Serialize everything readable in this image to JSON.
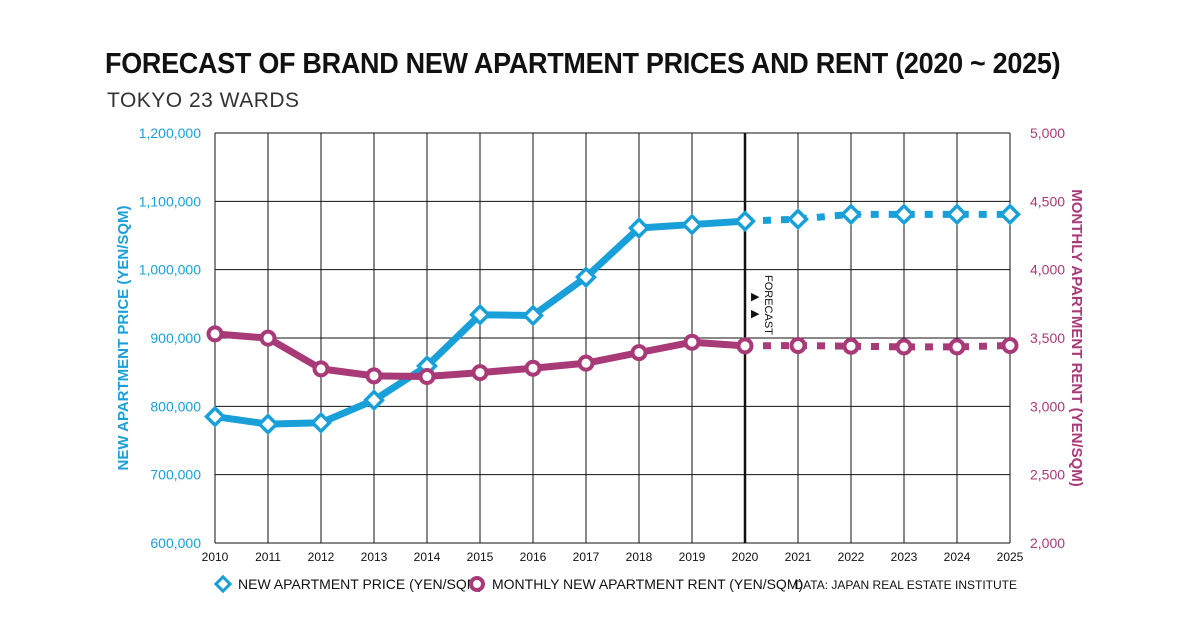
{
  "chart_data": {
    "type": "line",
    "title": "FORECAST OF BRAND NEW APARTMENT PRICES AND RENT (2020 ~ 2025)",
    "subtitle": "TOKYO 23 WARDS",
    "x": [
      2010,
      2011,
      2012,
      2013,
      2014,
      2015,
      2016,
      2017,
      2018,
      2019,
      2020,
      2021,
      2022,
      2023,
      2024,
      2025
    ],
    "x_tick_labels": [
      "2010",
      "2011",
      "2012",
      "2013",
      "2014",
      "2015",
      "2016",
      "2017",
      "2018",
      "2019",
      "2020",
      "2021",
      "2022",
      "2023",
      "2024",
      "2025"
    ],
    "ylabel_left": "NEW APARTMENT PRICE (YEN/SQM)",
    "ylabel_right": "MONTHLY APARTMENT RENT (YEN/SQM)",
    "ylim_left": [
      600000,
      1200000
    ],
    "ylim_right": [
      2000,
      5000
    ],
    "y_left_ticks": [
      "600,000",
      "700,000",
      "800,000",
      "900,000",
      "1,000,000",
      "1,100,000",
      "1,200,000"
    ],
    "y_right_ticks": [
      "2,000",
      "2,500",
      "3,000",
      "3,500",
      "4,000",
      "4,500",
      "5,000"
    ],
    "grid": true,
    "forecast_start": 2020,
    "forecast_label": "FORECAST",
    "series": [
      {
        "name": "NEW APARTMENT PRICE (YEN/SQM)",
        "axis": "left",
        "color": "#1aa0d8",
        "marker": "diamond",
        "values": [
          785000,
          774000,
          776000,
          809000,
          859000,
          934000,
          933000,
          989000,
          1061000,
          1066000,
          1071000,
          1074000,
          1081000,
          1081000,
          1081000,
          1081000
        ]
      },
      {
        "name": "MONTHLY NEW APARTMENT RENT (YEN/SQM)",
        "axis": "right",
        "color": "#a93a78",
        "marker": "circle",
        "values": [
          3530,
          3499,
          3274,
          3223,
          3218,
          3247,
          3279,
          3316,
          3393,
          3469,
          3442,
          3445,
          3440,
          3435,
          3435,
          3445
        ]
      }
    ],
    "legend_placement": "bottom-left",
    "source": "DATA: JAPAN REAL ESTATE INSTITUTE"
  }
}
